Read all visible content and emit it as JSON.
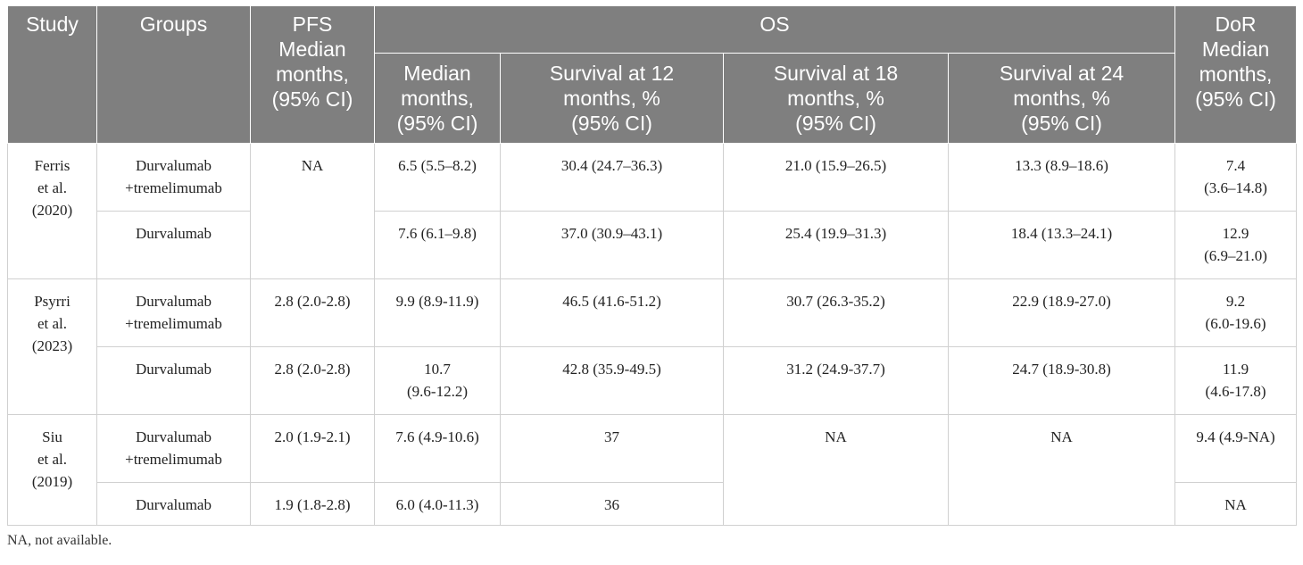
{
  "header": {
    "study": "Study",
    "groups": "Groups",
    "pfs": [
      "PFS",
      "Median",
      "months,",
      "(95% CI)"
    ],
    "os": "OS",
    "dor": [
      "DoR",
      "Median",
      "months,",
      "(95% CI)"
    ],
    "os_sub": {
      "median": [
        "Median",
        "months,",
        "(95% CI)"
      ],
      "s12": [
        "Survival at 12",
        "months, %",
        "(95% CI)"
      ],
      "s18": [
        "Survival at 18",
        "months, %",
        "(95% CI)"
      ],
      "s24": [
        "Survival at 24",
        "months, %",
        "(95% CI)"
      ]
    }
  },
  "rows": {
    "ferris": {
      "study": [
        "Ferris",
        "et al.",
        "(2020)"
      ],
      "pfs": "NA",
      "combo": {
        "group": [
          "Durvalumab",
          "+tremelimumab"
        ],
        "os_median": "6.5 (5.5–8.2)",
        "s12": "30.4 (24.7–36.3)",
        "s18": "21.0 (15.9–26.5)",
        "s24": "13.3 (8.9–18.6)",
        "dor": [
          "7.4",
          "(3.6–14.8)"
        ]
      },
      "mono": {
        "group": "Durvalumab",
        "os_median": "7.6 (6.1–9.8)",
        "s12": "37.0 (30.9–43.1)",
        "s18": "25.4 (19.9–31.3)",
        "s24": "18.4 (13.3–24.1)",
        "dor": [
          "12.9",
          "(6.9–21.0)"
        ]
      }
    },
    "psyrri": {
      "study": [
        "Psyrri",
        "et al.",
        "(2023)"
      ],
      "combo": {
        "group": [
          "Durvalumab",
          "+tremelimumab"
        ],
        "pfs": "2.8 (2.0-2.8)",
        "os_median": "9.9 (8.9-11.9)",
        "s12": "46.5 (41.6-51.2)",
        "s18": "30.7 (26.3-35.2)",
        "s24": "22.9 (18.9-27.0)",
        "dor": [
          "9.2",
          "(6.0-19.6)"
        ]
      },
      "mono": {
        "group": "Durvalumab",
        "pfs": "2.8 (2.0-2.8)",
        "os_median": [
          "10.7",
          "(9.6-12.2)"
        ],
        "s12": "42.8 (35.9-49.5)",
        "s18": "31.2 (24.9-37.7)",
        "s24": "24.7 (18.9-30.8)",
        "dor": [
          "11.9",
          "(4.6-17.8)"
        ]
      }
    },
    "siu": {
      "study": [
        "Siu",
        "et al.",
        "(2019)"
      ],
      "s18": "NA",
      "s24": "NA",
      "combo": {
        "group": [
          "Durvalumab",
          "+tremelimumab"
        ],
        "pfs": "2.0 (1.9-2.1)",
        "os_median": "7.6 (4.9-10.6)",
        "s12": "37",
        "dor": "9.4 (4.9-NA)"
      },
      "mono": {
        "group": "Durvalumab",
        "pfs": "1.9 (1.8-2.8)",
        "os_median": "6.0 (4.0-11.3)",
        "s12": "36",
        "dor": "NA"
      }
    }
  },
  "footnote": "NA, not available."
}
